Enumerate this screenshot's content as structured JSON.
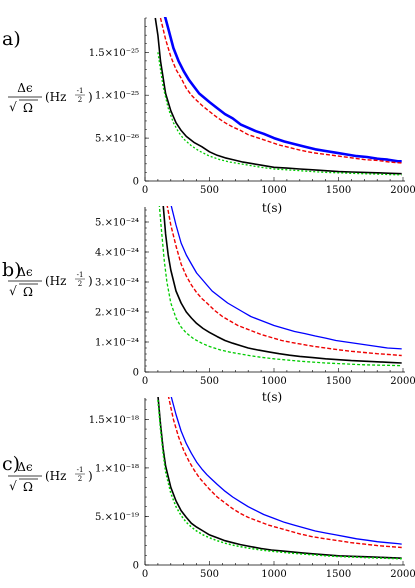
{
  "figure": {
    "ylabel": {
      "numerator": "Δϵ",
      "radical": "√",
      "denominator": "Ω",
      "unit_base": "(Hz",
      "unit_exp": "-1",
      "unit_exp_den": "2",
      "unit_close": ")"
    }
  },
  "chart_data": [
    {
      "type": "line",
      "panel": "a)",
      "xlabel": "t(s)",
      "ylabel": "Δϵ/√Ω (Hz^-1/2)",
      "xlim": [
        0,
        2000
      ],
      "ylim": [
        0,
        1.9e-25
      ],
      "xticks": [
        0,
        500,
        1000,
        1500,
        2000
      ],
      "xtick_labels": [
        "0",
        "500",
        "1000",
        "1500",
        "2000"
      ],
      "yticks": [
        0,
        5e-26,
        1e-25,
        1.5e-25
      ],
      "ytick_labels": [
        "0",
        "5.×10⁻²⁶",
        "1.×10⁻²⁵",
        "1.5×10⁻²⁵"
      ],
      "series": [
        {
          "color": "#0000ff",
          "width": 2.6,
          "dash": "",
          "x": [
            140,
            180,
            220,
            260,
            300,
            340,
            380,
            420,
            460,
            500,
            560,
            620,
            680,
            740,
            800,
            860,
            920,
            1000,
            1080,
            1160,
            1240,
            1320,
            1400,
            1480,
            1560,
            1640,
            1720,
            1800,
            1880,
            1960,
            1990
          ],
          "y": [
            2e-25,
            1.78e-25,
            1.55e-25,
            1.4e-25,
            1.28e-25,
            1.18e-25,
            1.1e-25,
            1.02e-25,
            9.7e-26,
            9.2e-26,
            8.5e-26,
            7.8e-26,
            7.3e-26,
            6.6e-26,
            6.2e-26,
            5.8e-26,
            5.5e-26,
            5e-26,
            4.6e-26,
            4.3e-26,
            4e-26,
            3.7e-26,
            3.5e-26,
            3.3e-26,
            3.1e-26,
            2.9e-26,
            2.8e-26,
            2.6e-26,
            2.5e-26,
            2.3e-26,
            2.3e-26
          ]
        },
        {
          "color": "#ee0000",
          "width": 1.4,
          "dash": "4,2",
          "x": [
            120,
            160,
            200,
            240,
            280,
            320,
            360,
            400,
            450,
            500,
            560,
            620,
            680,
            740,
            800,
            880,
            960,
            1040,
            1120,
            1200,
            1300,
            1400,
            1500,
            1600,
            1700,
            1800,
            1900,
            1990
          ],
          "y": [
            1.9e-25,
            1.65e-25,
            1.45e-25,
            1.3e-25,
            1.2e-25,
            1.08e-25,
            1e-25,
            9.4e-26,
            8.7e-26,
            8.1e-26,
            7.4e-26,
            6.8e-26,
            6.3e-26,
            5.9e-26,
            5.4e-26,
            5e-26,
            4.6e-26,
            4.2e-26,
            3.9e-26,
            3.6e-26,
            3.3e-26,
            3.1e-26,
            2.9e-26,
            2.7e-26,
            2.5e-26,
            2.4e-26,
            2.2e-26,
            2.1e-26
          ]
        },
        {
          "color": "#000000",
          "width": 1.6,
          "dash": "",
          "x": [
            80,
            100,
            120,
            160,
            200,
            240,
            280,
            320,
            380,
            440,
            500,
            560,
            620,
            680,
            760,
            840,
            920,
            1000,
            1100,
            1200,
            1300,
            1400,
            1500,
            1600,
            1700,
            1800,
            1900,
            1990
          ],
          "y": [
            1.9e-25,
            1.7e-25,
            1.4e-25,
            1.02e-25,
            8.2e-26,
            6.8e-26,
            5.9e-26,
            5.2e-26,
            4.5e-26,
            4e-26,
            3.4e-26,
            3e-26,
            2.7e-26,
            2.5e-26,
            2.2e-26,
            2e-26,
            1.8e-26,
            1.6e-26,
            1.5e-26,
            1.4e-26,
            1.3e-26,
            1.2e-26,
            1.1e-26,
            1.05e-26,
            1e-26,
            9.5e-27,
            9e-27,
            8.5e-27
          ]
        },
        {
          "color": "#00cc00",
          "width": 1.3,
          "dash": "2,2",
          "x": [
            100,
            140,
            180,
            220,
            260,
            300,
            360,
            420,
            500,
            580,
            660,
            740,
            820,
            900,
            1000,
            1100,
            1200,
            1300,
            1400,
            1500,
            1600,
            1700,
            1800,
            1900,
            1990
          ],
          "y": [
            1.5e-25,
            1.1e-25,
            8.5e-26,
            6.8e-26,
            5.7e-26,
            4.9e-26,
            4.1e-26,
            3.5e-26,
            2.9e-26,
            2.5e-26,
            2.2e-26,
            2e-26,
            1.8e-26,
            1.6e-26,
            1.4e-26,
            1.3e-26,
            1.2e-26,
            1.1e-26,
            1e-26,
            9.5e-27,
            9e-27,
            8.5e-27,
            8e-27,
            7.5e-27,
            7.2e-27
          ]
        }
      ]
    },
    {
      "type": "line",
      "panel": "b)",
      "xlabel": "t(s)",
      "ylabel": "Δϵ/√Ω (Hz^-1/2)",
      "xlim": [
        0,
        2000
      ],
      "ylim": [
        0,
        5.5e-24
      ],
      "xticks": [
        0,
        500,
        1000,
        1500,
        2000
      ],
      "xtick_labels": [
        "0",
        "500",
        "1000",
        "1500",
        "2000"
      ],
      "yticks": [
        0,
        1e-24,
        2e-24,
        3e-24,
        4e-24,
        5e-24
      ],
      "ytick_labels": [
        "0",
        "1.×10⁻²⁴",
        "2.×10⁻²⁴",
        "3.×10⁻²⁴",
        "4.×10⁻²⁴",
        "5.×10⁻²⁴"
      ],
      "series": [
        {
          "color": "#0000ff",
          "width": 1.3,
          "dash": "",
          "x": [
            200,
            240,
            280,
            320,
            360,
            400,
            440,
            480,
            520,
            580,
            640,
            700,
            760,
            820,
            880,
            940,
            1000,
            1080,
            1160,
            1240,
            1320,
            1400,
            1480,
            1560,
            1640,
            1720,
            1800,
            1880,
            1960,
            1990
          ],
          "y": [
            5.6e-24,
            4.9e-24,
            4.3e-24,
            3.9e-24,
            3.6e-24,
            3.3e-24,
            3.1e-24,
            2.9e-24,
            2.7e-24,
            2.5e-24,
            2.3e-24,
            2.15e-24,
            2e-24,
            1.85e-24,
            1.75e-24,
            1.65e-24,
            1.55e-24,
            1.45e-24,
            1.35e-24,
            1.28e-24,
            1.2e-24,
            1.13e-24,
            1.05e-24,
            1e-24,
            9.5e-25,
            9e-25,
            8.5e-25,
            8e-25,
            7.8e-25,
            7.7e-25
          ]
        },
        {
          "color": "#ee0000",
          "width": 1.4,
          "dash": "4,2",
          "x": [
            170,
            200,
            240,
            280,
            320,
            360,
            400,
            440,
            480,
            540,
            600,
            660,
            720,
            780,
            840,
            900,
            980,
            1060,
            1140,
            1220,
            1300,
            1400,
            1500,
            1600,
            1700,
            1800,
            1900,
            1990
          ],
          "y": [
            5.6e-24,
            4.9e-24,
            4.2e-24,
            3.6e-24,
            3.2e-24,
            2.9e-24,
            2.65e-24,
            2.45e-24,
            2.3e-24,
            2.05e-24,
            1.85e-24,
            1.7e-24,
            1.55e-24,
            1.45e-24,
            1.35e-24,
            1.25e-24,
            1.15e-24,
            1.05e-24,
            9.8e-25,
            9.2e-25,
            8.6e-25,
            8e-25,
            7.4e-25,
            6.9e-25,
            6.5e-25,
            6.1e-25,
            5.8e-25,
            5.5e-25
          ]
        },
        {
          "color": "#000000",
          "width": 1.6,
          "dash": "",
          "x": [
            140,
            160,
            180,
            200,
            240,
            280,
            320,
            360,
            400,
            450,
            500,
            560,
            620,
            680,
            740,
            800,
            880,
            960,
            1040,
            1120,
            1200,
            1300,
            1400,
            1500,
            1600,
            1700,
            1800,
            1900,
            1990
          ],
          "y": [
            5.6e-24,
            4.6e-24,
            3.9e-24,
            3.4e-24,
            2.7e-24,
            2.3e-24,
            2e-24,
            1.8e-24,
            1.62e-24,
            1.45e-24,
            1.32e-24,
            1.18e-24,
            1.05e-24,
            9.6e-25,
            8.8e-25,
            8e-25,
            7.3e-25,
            6.7e-25,
            6.1e-25,
            5.6e-25,
            5.2e-25,
            4.8e-25,
            4.4e-25,
            4.1e-25,
            3.8e-25,
            3.6e-25,
            3.4e-25,
            3.2e-25,
            3e-25
          ]
        },
        {
          "color": "#00cc00",
          "width": 1.3,
          "dash": "3,2",
          "x": [
            110,
            130,
            150,
            170,
            200,
            240,
            280,
            320,
            380,
            440,
            500,
            580,
            660,
            740,
            820,
            900,
            1000,
            1100,
            1200,
            1300,
            1400,
            1500,
            1600,
            1700,
            1800,
            1900,
            1990
          ],
          "y": [
            5.6e-24,
            4.6e-24,
            3.7e-24,
            3e-24,
            2.3e-24,
            1.8e-24,
            1.5e-24,
            1.3e-24,
            1.1e-24,
            9.6e-25,
            8.5e-25,
            7.4e-25,
            6.6e-25,
            6e-25,
            5.4e-25,
            4.9e-25,
            4.4e-25,
            4e-25,
            3.6e-25,
            3.3e-25,
            3e-25,
            2.8e-25,
            2.6e-25,
            2.4e-25,
            2.3e-25,
            2.2e-25,
            2.1e-25
          ]
        }
      ]
    },
    {
      "type": "line",
      "panel": "c)",
      "xlabel": "",
      "ylabel": "Δϵ/√Ω (Hz^-1/2)",
      "xlim": [
        0,
        2000
      ],
      "ylim": [
        0,
        1.72e-18
      ],
      "xticks": [
        0,
        500,
        1000,
        1500,
        2000
      ],
      "xtick_labels": [
        "0",
        "500",
        "1000",
        "1500",
        "2000"
      ],
      "yticks": [
        0,
        5e-19,
        1e-18,
        1.5e-18
      ],
      "ytick_labels": [
        "0",
        "5.×10⁻¹⁹",
        "1.×10⁻¹⁸",
        "1.5×10⁻¹⁸"
      ],
      "series": [
        {
          "color": "#0000ff",
          "width": 1.3,
          "dash": "",
          "x": [
            200,
            240,
            280,
            320,
            360,
            400,
            440,
            480,
            520,
            560,
            620,
            680,
            740,
            800,
            860,
            920,
            1000,
            1080,
            1160,
            1240,
            1320,
            1400,
            1480,
            1560,
            1640,
            1720,
            1800,
            1880,
            1960,
            1990
          ],
          "y": [
            1.75e-18,
            1.55e-18,
            1.38e-18,
            1.25e-18,
            1.15e-18,
            1.06e-18,
            9.9e-19,
            9.3e-19,
            8.8e-19,
            8.3e-19,
            7.6e-19,
            7e-19,
            6.5e-19,
            6e-19,
            5.6e-19,
            5.2e-19,
            4.8e-19,
            4.4e-19,
            4.1e-19,
            3.8e-19,
            3.5e-19,
            3.3e-19,
            3.1e-19,
            2.9e-19,
            2.7e-19,
            2.55e-19,
            2.4e-19,
            2.3e-19,
            2.2e-19,
            2.15e-19
          ]
        },
        {
          "color": "#ee0000",
          "width": 1.4,
          "dash": "4,2",
          "x": [
            180,
            220,
            260,
            300,
            340,
            380,
            420,
            460,
            500,
            560,
            620,
            680,
            740,
            800,
            880,
            960,
            1040,
            1120,
            1200,
            1300,
            1400,
            1500,
            1600,
            1700,
            1800,
            1900,
            1990
          ],
          "y": [
            1.75e-18,
            1.5e-18,
            1.32e-18,
            1.18e-18,
            1.07e-18,
            9.8e-19,
            9e-19,
            8.4e-19,
            7.8e-19,
            7e-19,
            6.4e-19,
            5.8e-19,
            5.3e-19,
            4.9e-19,
            4.5e-19,
            4.1e-19,
            3.8e-19,
            3.5e-19,
            3.2e-19,
            2.9e-19,
            2.7e-19,
            2.5e-19,
            2.3e-19,
            2.15e-19,
            2e-19,
            1.9e-19,
            1.8e-19
          ]
        },
        {
          "color": "#000000",
          "width": 1.6,
          "dash": "",
          "x": [
            100,
            120,
            140,
            160,
            200,
            240,
            280,
            320,
            360,
            400,
            450,
            500,
            560,
            620,
            680,
            740,
            820,
            900,
            980,
            1060,
            1140,
            1220,
            1300,
            1400,
            1500,
            1600,
            1700,
            1800,
            1900,
            1990
          ],
          "y": [
            1.75e-18,
            1.45e-18,
            1.2e-18,
            1.02e-18,
            8e-19,
            6.6e-19,
            5.6e-19,
            4.9e-19,
            4.3e-19,
            3.9e-19,
            3.5e-19,
            3.1e-19,
            2.8e-19,
            2.5e-19,
            2.3e-19,
            2.1e-19,
            1.9e-19,
            1.7e-19,
            1.55e-19,
            1.45e-19,
            1.35e-19,
            1.25e-19,
            1.15e-19,
            1.05e-19,
            9.5e-20,
            9e-20,
            8.5e-20,
            8e-20,
            7.5e-20,
            7e-20
          ]
        },
        {
          "color": "#00cc00",
          "width": 1.5,
          "dash": "2,2",
          "x": [
            100,
            120,
            140,
            160,
            200,
            240,
            280,
            320,
            360,
            400,
            450,
            500,
            560,
            620,
            680,
            740,
            820,
            900,
            980,
            1060,
            1140,
            1220,
            1300,
            1400,
            1500,
            1600,
            1700,
            1800,
            1900,
            1990
          ],
          "y": [
            1.7e-18,
            1.4e-18,
            1.15e-18,
            9.6e-19,
            7.4e-19,
            6e-19,
            5.1e-19,
            4.4e-19,
            3.9e-19,
            3.5e-19,
            3.1e-19,
            2.8e-19,
            2.5e-19,
            2.25e-19,
            2.05e-19,
            1.88e-19,
            1.7e-19,
            1.55e-19,
            1.42e-19,
            1.32e-19,
            1.22e-19,
            1.13e-19,
            1.05e-19,
            9.6e-20,
            8.8e-20,
            8.2e-20,
            7.7e-20,
            7.2e-20,
            6.8e-20,
            6.4e-20
          ]
        }
      ]
    }
  ]
}
